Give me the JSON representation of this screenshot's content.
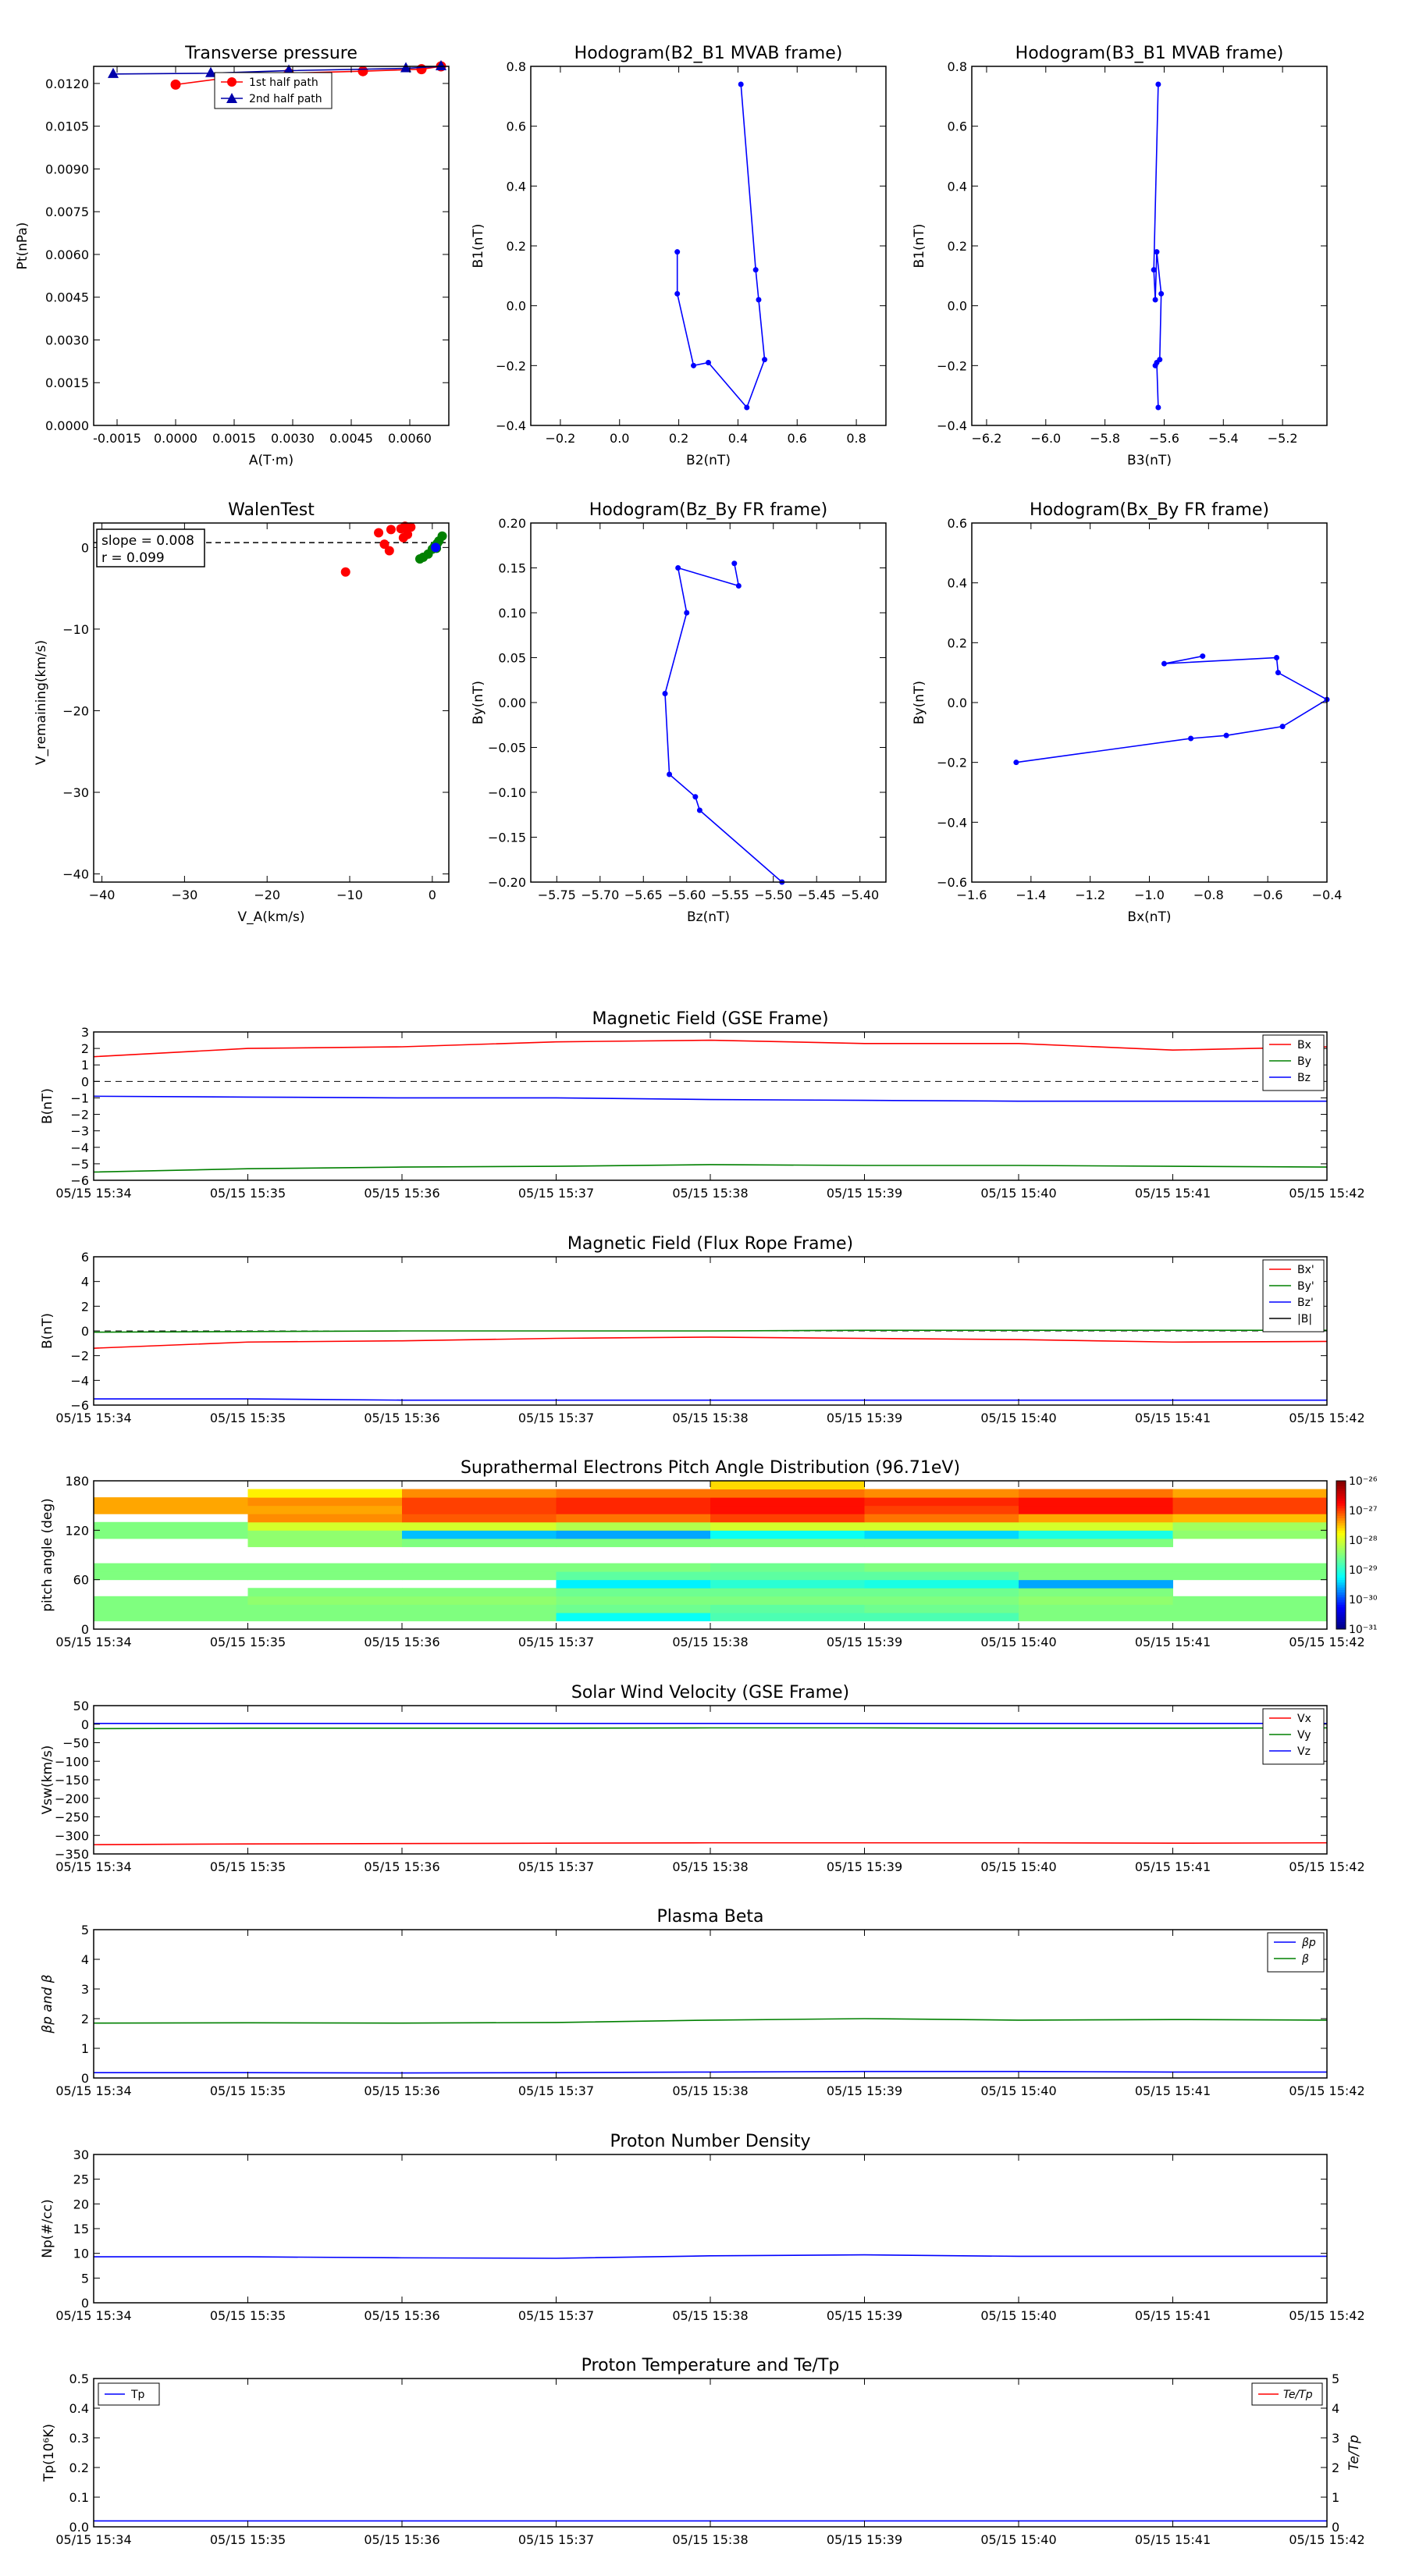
{
  "chart_data": [
    {
      "id": "tp",
      "type": "scatter",
      "title": "Transverse pressure",
      "xlabel": "A(T·m)",
      "ylabel": "Pt(nPa)",
      "xlim": [
        -0.0021,
        0.007
      ],
      "ylim": [
        0,
        0.0126
      ],
      "xticks": [
        "-0.0015",
        "0.0000",
        "0.0015",
        "0.0030",
        "0.0045",
        "0.0060"
      ],
      "yticks": [
        "0.0000",
        "0.0015",
        "0.0030",
        "0.0045",
        "0.0060",
        "0.0075",
        "0.0090",
        "0.0105",
        "0.0120"
      ],
      "legend": "top-center",
      "series": [
        {
          "name": "1st half path",
          "color": "#ff0000",
          "marker": "circle",
          "x": [
            0.0,
            0.0015,
            0.0029,
            0.0048,
            0.0063,
            0.0068
          ],
          "y": [
            0.01196,
            0.01223,
            0.01236,
            0.01243,
            0.0125,
            0.0126
          ]
        },
        {
          "name": "2nd half path",
          "color": "#0000aa",
          "marker": "triangle",
          "x": [
            -0.0016,
            0.0009,
            0.0029,
            0.0059,
            0.0068
          ],
          "y": [
            0.01233,
            0.01236,
            0.01245,
            0.01253,
            0.0126
          ]
        }
      ]
    },
    {
      "id": "h1",
      "type": "line",
      "title": "Hodogram(B2_B1 MVAB frame)",
      "xlabel": "B2(nT)",
      "ylabel": "B1(nT)",
      "xlim": [
        -0.3,
        0.9
      ],
      "ylim": [
        -0.4,
        0.8
      ],
      "xticks": [
        "−0.2",
        "0.0",
        "0.2",
        "0.4",
        "0.6",
        "0.8"
      ],
      "yticks": [
        "−0.4",
        "−0.2",
        "0.0",
        "0.2",
        "0.4",
        "0.6",
        "0.8"
      ],
      "series": [
        {
          "color": "#0000ff",
          "x": [
            0.41,
            0.46,
            0.47,
            0.49,
            0.43,
            0.3,
            0.25,
            0.195,
            0.195
          ],
          "y": [
            0.74,
            0.12,
            0.02,
            -0.18,
            -0.34,
            -0.19,
            -0.2,
            0.04,
            0.18
          ]
        }
      ]
    },
    {
      "id": "h2",
      "type": "line",
      "title": "Hodogram(B3_B1 MVAB frame)",
      "xlabel": "B3(nT)",
      "ylabel": "B1(nT)",
      "xlim": [
        -6.25,
        -5.05
      ],
      "ylim": [
        -0.4,
        0.8
      ],
      "xticks": [
        "−6.2",
        "−6.0",
        "−5.8",
        "−5.6",
        "−5.4",
        "−5.2"
      ],
      "yticks": [
        "−0.4",
        "−0.2",
        "0.0",
        "0.2",
        "0.4",
        "0.6",
        "0.8"
      ],
      "series": [
        {
          "color": "#0000ff",
          "x": [
            -5.62,
            -5.635,
            -5.63,
            -5.625,
            -5.61,
            -5.615,
            -5.63,
            -5.625,
            -5.62
          ],
          "y": [
            0.74,
            0.12,
            0.02,
            0.18,
            0.04,
            -0.18,
            -0.2,
            -0.19,
            -0.34
          ]
        }
      ]
    },
    {
      "id": "walen",
      "type": "scatter",
      "title": "WalenTest",
      "xlabel": "V_A(km/s)",
      "ylabel": "V_remaining(km/s)",
      "xlim": [
        -41,
        2
      ],
      "ylim": [
        -41,
        3
      ],
      "xticks": [
        "−40",
        "−30",
        "−20",
        "−10",
        "0"
      ],
      "yticks": [
        "−40",
        "−30",
        "−20",
        "−10",
        "0"
      ],
      "annotations": [
        "slope = 0.008",
        "r = 0.099"
      ],
      "series": [
        {
          "color": "#ff0000",
          "x": [
            -10.5,
            -6.5,
            -5.8,
            -5.2,
            -5.0,
            -3.8,
            -3.3,
            -2.6,
            -3.0,
            -3.5
          ],
          "y": [
            -3.0,
            1.8,
            0.4,
            -0.4,
            2.2,
            2.3,
            2.6,
            2.5,
            1.6,
            1.2
          ]
        },
        {
          "color": "#008000",
          "x": [
            -1.5,
            -1.1,
            -0.5,
            0.0,
            0.3,
            0.6,
            0.8,
            1.2,
            0.5
          ],
          "y": [
            -1.4,
            -1.2,
            -0.8,
            -0.2,
            0.2,
            0.5,
            0.8,
            1.4,
            -0.1
          ]
        },
        {
          "color": "#0000ff",
          "x": [
            0.4
          ],
          "y": [
            0.0
          ]
        }
      ]
    },
    {
      "id": "h3",
      "type": "line",
      "title": "Hodogram(Bz_By FR frame)",
      "xlabel": "Bz(nT)",
      "ylabel": "By(nT)",
      "xlim": [
        -5.78,
        -5.37
      ],
      "ylim": [
        -0.2,
        0.2
      ],
      "xticks": [
        "−5.75",
        "−5.70",
        "−5.65",
        "−5.60",
        "−5.55",
        "−5.50",
        "−5.45",
        "−5.40"
      ],
      "yticks": [
        "−0.20",
        "−0.15",
        "−0.10",
        "−0.05",
        "0.00",
        "0.05",
        "0.10",
        "0.15",
        "0.20"
      ],
      "series": [
        {
          "color": "#0000ff",
          "x": [
            -5.545,
            -5.54,
            -5.61,
            -5.6,
            -5.625,
            -5.62,
            -5.59,
            -5.585,
            -5.49
          ],
          "y": [
            0.155,
            0.13,
            0.15,
            0.1,
            0.01,
            -0.08,
            -0.105,
            -0.12,
            -0.2
          ]
        }
      ]
    },
    {
      "id": "h4",
      "type": "line",
      "title": "Hodogram(Bx_By FR frame)",
      "xlabel": "Bx(nT)",
      "ylabel": "By(nT)",
      "xlim": [
        -1.6,
        -0.4
      ],
      "ylim": [
        -0.6,
        0.6
      ],
      "xticks": [
        "−1.6",
        "−1.4",
        "−1.2",
        "−1.0",
        "−0.8",
        "−0.6",
        "−0.4"
      ],
      "yticks": [
        "−0.6",
        "−0.4",
        "−0.2",
        "0.0",
        "0.2",
        "0.4",
        "0.6"
      ],
      "series": [
        {
          "color": "#0000ff",
          "x": [
            -0.82,
            -0.95,
            -0.57,
            -0.565,
            -0.4,
            -0.55,
            -0.74,
            -0.86,
            -1.45
          ],
          "y": [
            0.155,
            0.13,
            0.15,
            0.1,
            0.01,
            -0.08,
            -0.11,
            -0.12,
            -0.2
          ]
        }
      ]
    },
    {
      "id": "bgse",
      "type": "line",
      "title": "Magnetic Field (GSE Frame)",
      "ylabel": "B(nT)",
      "ylim": [
        -6,
        3
      ],
      "yticks": [
        "−6",
        "−5",
        "−4",
        "−3",
        "−2",
        "−1",
        "0",
        "1",
        "2",
        "3"
      ],
      "legend": "top-right",
      "zeroline": true,
      "series": [
        {
          "name": "Bx",
          "color": "#ff0000",
          "t": [
            0,
            1,
            2,
            3,
            4,
            5,
            6,
            7,
            8
          ],
          "values": [
            1.5,
            2.0,
            2.1,
            2.4,
            2.5,
            2.3,
            2.3,
            1.9,
            2.1
          ]
        },
        {
          "name": "By",
          "color": "#008000",
          "t": [
            0,
            1,
            2,
            3,
            4,
            5,
            6,
            7,
            8
          ],
          "values": [
            -5.5,
            -5.3,
            -5.2,
            -5.15,
            -5.05,
            -5.1,
            -5.1,
            -5.15,
            -5.2
          ]
        },
        {
          "name": "Bz",
          "color": "#0000ff",
          "t": [
            0,
            1,
            2,
            3,
            4,
            5,
            6,
            7,
            8
          ],
          "values": [
            -0.9,
            -0.95,
            -1.0,
            -1.0,
            -1.1,
            -1.15,
            -1.2,
            -1.2,
            -1.2
          ]
        }
      ]
    },
    {
      "id": "bfr",
      "type": "line",
      "title": "Magnetic Field (Flux Rope Frame)",
      "ylabel": "B(nT)",
      "ylim": [
        -6,
        6
      ],
      "yticks": [
        "−6",
        "−4",
        "−2",
        "0",
        "2",
        "4",
        "6"
      ],
      "legend": "top-right",
      "zeroline": true,
      "series": [
        {
          "name": "Bx'",
          "color": "#ff0000",
          "t": [
            0,
            1,
            2,
            3,
            4,
            5,
            6,
            7,
            8
          ],
          "values": [
            -1.4,
            -0.9,
            -0.8,
            -0.6,
            -0.5,
            -0.6,
            -0.7,
            -0.9,
            -0.85
          ]
        },
        {
          "name": "By'",
          "color": "#008000",
          "t": [
            0,
            1,
            2,
            3,
            4,
            5,
            6,
            7,
            8
          ],
          "values": [
            -0.1,
            -0.05,
            0.0,
            0.0,
            0.0,
            0.05,
            0.05,
            0.05,
            0.05
          ]
        },
        {
          "name": "Bz'",
          "color": "#0000ff",
          "t": [
            0,
            1,
            2,
            3,
            4,
            5,
            6,
            7,
            8
          ],
          "values": [
            -5.5,
            -5.5,
            -5.6,
            -5.6,
            -5.6,
            -5.6,
            -5.6,
            -5.6,
            -5.6
          ]
        },
        {
          "name": "|B|",
          "color": "#000000",
          "t": [],
          "values": []
        }
      ]
    },
    {
      "id": "pad",
      "type": "heatmap",
      "title": "Suprathermal Electrons Pitch Angle Distribution (96.71eV)",
      "ylabel": "pitch angle (deg)",
      "ylim": [
        0,
        180
      ],
      "yticks": [
        "0",
        "60",
        "120",
        "180"
      ],
      "colorbar_ticks": [
        "10⁻³¹",
        "10⁻³⁰",
        "10⁻²⁹",
        "10⁻²⁸",
        "10⁻²⁷",
        "10⁻²⁶"
      ],
      "bin_edges_deg": [
        0,
        10,
        20,
        30,
        40,
        50,
        60,
        70,
        80,
        90,
        100,
        110,
        120,
        130,
        140,
        150,
        160,
        170,
        180
      ],
      "log10_values": [
        [
          null,
          null,
          null,
          null,
          null,
          null,
          null,
          null
        ],
        [
          -28.5,
          -28.5,
          -28.5,
          -29.2,
          -28.8,
          -28.8,
          -28.5,
          -28.5
        ],
        [
          -28.5,
          -28.5,
          -28.5,
          -28.6,
          -28.7,
          -28.6,
          -28.5,
          -28.5
        ],
        [
          -28.5,
          -28.4,
          -28.4,
          -28.5,
          -28.5,
          -28.5,
          -28.4,
          -28.5
        ],
        [
          null,
          -28.5,
          -28.5,
          -28.6,
          -28.6,
          -28.6,
          -28.5,
          null
        ],
        [
          null,
          null,
          null,
          -29.3,
          -29.0,
          -29.1,
          -29.6,
          null
        ],
        [
          -28.5,
          -28.5,
          -28.5,
          -28.7,
          -28.7,
          -28.7,
          -28.5,
          -28.5
        ],
        [
          -28.5,
          -28.5,
          -28.5,
          -28.5,
          -28.6,
          -28.5,
          -28.5,
          -28.5
        ],
        [
          null,
          null,
          null,
          null,
          null,
          null,
          null,
          null
        ],
        [
          null,
          null,
          null,
          null,
          null,
          null,
          null,
          null
        ],
        [
          null,
          -28.4,
          -28.5,
          -28.5,
          -28.5,
          -28.5,
          -28.5,
          null
        ],
        [
          -28.5,
          -28.4,
          -29.5,
          -29.6,
          -29.2,
          -29.4,
          -29.1,
          -28.4
        ],
        [
          -28.5,
          -28.0,
          -28.0,
          -28.2,
          -28.0,
          -28.0,
          -28.0,
          -28.3
        ],
        [
          null,
          -27.3,
          -27.1,
          -27.2,
          -27.0,
          -27.2,
          -27.4,
          -27.5
        ],
        [
          -27.4,
          -27.4,
          -27.0,
          -26.9,
          -26.8,
          -27.0,
          -26.8,
          -27.0
        ],
        [
          -27.4,
          -27.3,
          -27.0,
          -26.9,
          -26.8,
          -26.9,
          -26.8,
          -27.0
        ],
        [
          null,
          -27.7,
          -27.3,
          -27.2,
          -27.2,
          -27.3,
          -27.2,
          -27.4
        ],
        [
          null,
          null,
          null,
          null,
          -27.6,
          null,
          null,
          null
        ]
      ]
    },
    {
      "id": "vsw",
      "type": "line",
      "title": "Solar Wind Velocity (GSE Frame)",
      "ylabel": "Vsw(km/s)",
      "ylim": [
        -350,
        50
      ],
      "yticks": [
        "−350",
        "−300",
        "−250",
        "−200",
        "−150",
        "−100",
        "−50",
        "0",
        "50"
      ],
      "legend": "top-right",
      "series": [
        {
          "name": "Vx",
          "color": "#ff0000",
          "t": [
            0,
            1,
            2,
            3,
            4,
            5,
            6,
            7,
            8
          ],
          "values": [
            -325,
            -323,
            -322,
            -321,
            -320,
            -320,
            -320,
            -321,
            -320
          ]
        },
        {
          "name": "Vy",
          "color": "#008000",
          "t": [
            0,
            1,
            2,
            3,
            4,
            5,
            6,
            7,
            8
          ],
          "values": [
            -12,
            -11,
            -11,
            -11,
            -10,
            -10,
            -11,
            -11,
            -10
          ]
        },
        {
          "name": "Vz",
          "color": "#0000ff",
          "t": [
            0,
            1,
            2,
            3,
            4,
            5,
            6,
            7,
            8
          ],
          "values": [
            2,
            2,
            2,
            2,
            2,
            2,
            2,
            2,
            2
          ]
        }
      ]
    },
    {
      "id": "beta",
      "type": "line",
      "title": "Plasma Beta",
      "ylabel": "βp and β",
      "ylim": [
        0,
        5
      ],
      "yticks": [
        "0",
        "1",
        "2",
        "3",
        "4",
        "5"
      ],
      "legend": "top-right",
      "series": [
        {
          "name": "βp",
          "color": "#0000ff",
          "t": [
            0,
            1,
            2,
            3,
            4,
            5,
            6,
            7,
            8
          ],
          "values": [
            0.18,
            0.18,
            0.17,
            0.18,
            0.2,
            0.22,
            0.22,
            0.2,
            0.2
          ]
        },
        {
          "name": "β",
          "color": "#008000",
          "t": [
            0,
            1,
            2,
            3,
            4,
            5,
            6,
            7,
            8
          ],
          "values": [
            1.85,
            1.86,
            1.85,
            1.87,
            1.95,
            2.0,
            1.95,
            1.97,
            1.95
          ]
        }
      ]
    },
    {
      "id": "np",
      "type": "line",
      "title": "Proton Number Density",
      "ylabel": "Np(#/cc)",
      "ylim": [
        0,
        30
      ],
      "yticks": [
        "0",
        "5",
        "10",
        "15",
        "20",
        "25",
        "30"
      ],
      "series": [
        {
          "color": "#0000ff",
          "t": [
            0,
            1,
            2,
            3,
            4,
            5,
            6,
            7,
            8
          ],
          "values": [
            9.3,
            9.3,
            9.1,
            9.0,
            9.5,
            9.7,
            9.4,
            9.4,
            9.4
          ]
        }
      ]
    },
    {
      "id": "tp2",
      "type": "line",
      "title": "Proton Temperature and Te/Tp",
      "ylabel": "Tp(10⁶K)",
      "ylim": [
        0,
        0.5
      ],
      "yticks": [
        "0.0",
        "0.1",
        "0.2",
        "0.3",
        "0.4",
        "0.5"
      ],
      "ylabel_right": "Te/Tp",
      "ylim_right": [
        0,
        5
      ],
      "yticks_right": [
        "0",
        "1",
        "2",
        "3",
        "4",
        "5"
      ],
      "legend_left": "Tp",
      "legend_right": "Te/Tp",
      "series": [
        {
          "name": "Tp",
          "color": "#0000ff",
          "t": [
            0,
            1,
            2,
            3,
            4,
            5,
            6,
            7,
            8
          ],
          "values": [
            0.02,
            0.02,
            0.02,
            0.02,
            0.02,
            0.02,
            0.02,
            0.02,
            0.02
          ]
        },
        {
          "name": "Te/Tp",
          "color": "#ff0000",
          "t": [],
          "values": []
        }
      ]
    }
  ],
  "time_axis": {
    "labels": [
      "05/15 15:34",
      "05/15 15:35",
      "05/15 15:36",
      "05/15 15:37",
      "05/15 15:38",
      "05/15 15:39",
      "05/15 15:40",
      "05/15 15:41",
      "05/15 15:42"
    ]
  }
}
